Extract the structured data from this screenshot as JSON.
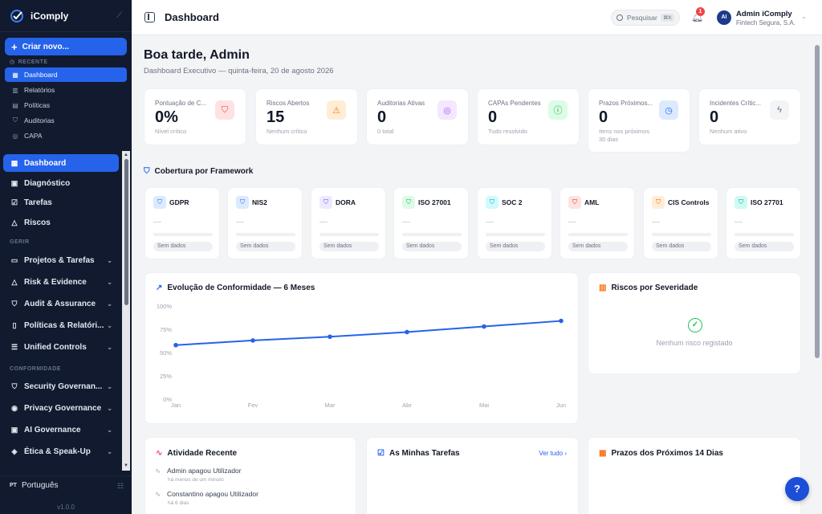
{
  "app": {
    "name": "iComply",
    "version": "v1.0.0"
  },
  "sidebar": {
    "create_label": "Criar novo...",
    "recent_label": "RECENTE",
    "recent_items": [
      {
        "label": "Dashboard",
        "icon": "grid-icon"
      },
      {
        "label": "Relatórios",
        "icon": "bar-chart-icon"
      },
      {
        "label": "Políticas",
        "icon": "file-icon"
      },
      {
        "label": "Auditorias",
        "icon": "shield-icon"
      },
      {
        "label": "CAPA",
        "icon": "target-icon"
      }
    ],
    "main_items": [
      {
        "label": "Dashboard",
        "icon": "grid-icon"
      },
      {
        "label": "Diagnóstico",
        "icon": "clipboard-icon"
      },
      {
        "label": "Tarefas",
        "icon": "check-square-icon"
      },
      {
        "label": "Riscos",
        "icon": "warning-icon"
      }
    ],
    "gerir_label": "GERIR",
    "gerir_items": [
      {
        "label": "Projetos & Tarefas",
        "icon": "folder-icon"
      },
      {
        "label": "Risk & Evidence",
        "icon": "warning-icon"
      },
      {
        "label": "Audit & Assurance",
        "icon": "shield-icon"
      },
      {
        "label": "Políticas & Relatóri...",
        "icon": "book-icon"
      },
      {
        "label": "Unified Controls",
        "icon": "sliders-icon"
      }
    ],
    "conformidade_label": "CONFORMIDADE",
    "conf_items": [
      {
        "label": "Security Governan...",
        "icon": "shield-check-icon"
      },
      {
        "label": "Privacy Governance",
        "icon": "eye-icon"
      },
      {
        "label": "AI Governance",
        "icon": "cpu-icon"
      },
      {
        "label": "Ética & Speak-Up",
        "icon": "megaphone-icon"
      }
    ],
    "language_code": "PT",
    "language": "Português"
  },
  "topbar": {
    "title": "Dashboard",
    "search_placeholder": "Pesquisar",
    "search_shortcut": "⌘K",
    "notification_count": "1",
    "user_initials": "AI",
    "user_name": "Admin iComply",
    "user_org": "Fintech Segura, S.A."
  },
  "greeting": {
    "title": "Boa tarde, Admin",
    "subtitle": "Dashboard Executivo — quinta-feira, 20 de agosto 2026"
  },
  "kpis": [
    {
      "label": "Pontuação de C...",
      "value": "0%",
      "sub": "Nível crítico",
      "icon": "shield-icon",
      "color": "#ef4444",
      "bg": "#fee2e2"
    },
    {
      "label": "Riscos Abertos",
      "value": "15",
      "sub": "Nenhum crítico",
      "icon": "warning-icon",
      "color": "#f97316",
      "bg": "#ffedd5"
    },
    {
      "label": "Auditorias Ativas",
      "value": "0",
      "sub": "0 total",
      "icon": "target-icon",
      "color": "#a855f7",
      "bg": "#f3e8ff"
    },
    {
      "label": "CAPAs Pendentes",
      "value": "0",
      "sub": "Tudo resolvido",
      "icon": "alert-circle-icon",
      "color": "#16a34a",
      "bg": "#dcfce7"
    },
    {
      "label": "Prazos Próximos...",
      "value": "0",
      "sub": "Itens nos próximos 30 dias",
      "icon": "clock-icon",
      "color": "#2563eb",
      "bg": "#dbeafe"
    },
    {
      "label": "Incidentes Crític...",
      "value": "0",
      "sub": "Nenhum ativo",
      "icon": "bolt-icon",
      "color": "#6b7280",
      "bg": "#f3f4f6"
    }
  ],
  "frameworks_title": "Cobertura por Framework",
  "frameworks": [
    {
      "name": "GDPR",
      "color": "#2563eb",
      "bg": "#dbeafe",
      "status": "Sem dados"
    },
    {
      "name": "NIS2",
      "color": "#2563eb",
      "bg": "#dbeafe",
      "status": "Sem dados"
    },
    {
      "name": "DORA",
      "color": "#7c3aed",
      "bg": "#ede9fe",
      "status": "Sem dados"
    },
    {
      "name": "ISO 27001",
      "color": "#16a34a",
      "bg": "#dcfce7",
      "status": "Sem dados"
    },
    {
      "name": "SOC 2",
      "color": "#0891b2",
      "bg": "#cffafe",
      "status": "Sem dados"
    },
    {
      "name": "AML",
      "color": "#dc2626",
      "bg": "#fee2e2",
      "status": "Sem dados"
    },
    {
      "name": "CIS Controls",
      "color": "#ea580c",
      "bg": "#ffedd5",
      "status": "Sem dados"
    },
    {
      "name": "ISO 27701",
      "color": "#0d9488",
      "bg": "#ccfbf1",
      "status": "Sem dados"
    }
  ],
  "chart_title": "Evolução de Conformidade — 6 Meses",
  "chart_data": {
    "type": "line",
    "title": "Evolução de Conformidade — 6 Meses",
    "categories": [
      "Jan",
      "Fev",
      "Mar",
      "Abr",
      "Mai",
      "Jun"
    ],
    "series": [
      {
        "values": [
          58,
          63,
          67,
          72,
          78,
          84
        ]
      }
    ],
    "yticks": [
      "100%",
      "75%",
      "50%",
      "25%",
      "0%"
    ],
    "ylim": [
      0,
      100
    ],
    "color": "#2563eb",
    "grid": false
  },
  "risks_card": {
    "title": "Riscos por Severidade",
    "empty": "Nenhum risco registado"
  },
  "activity": {
    "title": "Atividade Recente",
    "items": [
      {
        "actor": "Admin",
        "action": " apagou ",
        "object": "Utilizador",
        "time": "há menos de um minuto"
      },
      {
        "actor": "Constantino",
        "action": " apagou ",
        "object": "Utilizador",
        "time": "há 6 dias"
      }
    ]
  },
  "tasks": {
    "title": "As Minhas Tarefas",
    "see_all": "Ver tudo ›"
  },
  "deadlines": {
    "title": "Prazos dos Próximos 14 Dias"
  },
  "help_label": "?"
}
